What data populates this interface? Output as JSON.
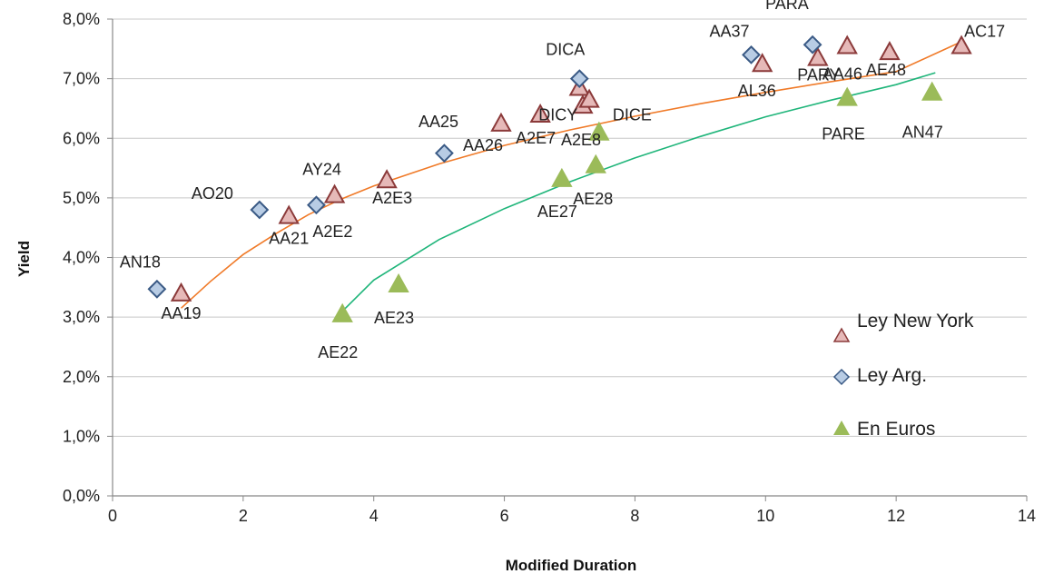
{
  "chart_data": {
    "type": "scatter",
    "title": "",
    "xlabel": "Modified Duration",
    "ylabel": "Yield",
    "xlim": [
      0,
      14
    ],
    "ylim": [
      0,
      8
    ],
    "x_ticks": [
      {
        "value": 0,
        "label": "0"
      },
      {
        "value": 2,
        "label": "2"
      },
      {
        "value": 4,
        "label": "4"
      },
      {
        "value": 6,
        "label": "6"
      },
      {
        "value": 8,
        "label": "8"
      },
      {
        "value": 10,
        "label": "10"
      },
      {
        "value": 12,
        "label": "12"
      },
      {
        "value": 14,
        "label": "14"
      }
    ],
    "y_ticks": [
      {
        "value": 0,
        "label": "0,0%"
      },
      {
        "value": 1,
        "label": "1,0%"
      },
      {
        "value": 2,
        "label": "2,0%"
      },
      {
        "value": 3,
        "label": "3,0%"
      },
      {
        "value": 4,
        "label": "4,0%"
      },
      {
        "value": 5,
        "label": "5,0%"
      },
      {
        "value": 6,
        "label": "6,0%"
      },
      {
        "value": 7,
        "label": "7,0%"
      },
      {
        "value": 8,
        "label": "8,0%"
      }
    ],
    "grid": "horizontal",
    "legend_position": "right",
    "series": [
      {
        "name": "Ley New York",
        "marker": "triangle",
        "fill": "#e6b9b8",
        "stroke": "#8b3a3a",
        "trend_color": "#f07a28",
        "trendline": [
          [
            1.05,
            3.15
          ],
          [
            1.5,
            3.6
          ],
          [
            2,
            4.05
          ],
          [
            2.5,
            4.4
          ],
          [
            3,
            4.72
          ],
          [
            3.5,
            4.98
          ],
          [
            4,
            5.2
          ],
          [
            5,
            5.57
          ],
          [
            6,
            5.88
          ],
          [
            7,
            6.14
          ],
          [
            8,
            6.37
          ],
          [
            9,
            6.58
          ],
          [
            10,
            6.77
          ],
          [
            11,
            6.95
          ],
          [
            12,
            7.12
          ],
          [
            13,
            7.62
          ]
        ],
        "points": [
          {
            "x": 1.05,
            "y": 3.4,
            "label": "AA19"
          },
          {
            "x": 2.7,
            "y": 4.7,
            "label": "AA21"
          },
          {
            "x": 3.4,
            "y": 5.05,
            "label": "AY24"
          },
          {
            "x": 4.2,
            "y": 5.3,
            "label": "A2E3"
          },
          {
            "x": 5.95,
            "y": 6.25,
            "label": "AA26"
          },
          {
            "x": 6.55,
            "y": 6.4,
            "label": "A2E7"
          },
          {
            "x": 7.15,
            "y": 6.85,
            "label": "DICY"
          },
          {
            "x": 7.2,
            "y": 6.55,
            "label": "A2E8"
          },
          {
            "x": 7.3,
            "y": 6.65,
            "label": "AA25"
          },
          {
            "x": 9.95,
            "y": 7.25,
            "label": "AL36"
          },
          {
            "x": 10.8,
            "y": 7.35,
            "label": "AA46"
          },
          {
            "x": 11.25,
            "y": 7.55,
            "label": "PARY"
          },
          {
            "x": 11.9,
            "y": 7.45,
            "label": "AE48"
          },
          {
            "x": 13.0,
            "y": 7.55,
            "label": "AC17"
          }
        ]
      },
      {
        "name": "Ley Arg.",
        "marker": "diamond",
        "fill": "#b8cce4",
        "stroke": "#3a5a85",
        "points": [
          {
            "x": 0.68,
            "y": 3.47,
            "label": "AN18"
          },
          {
            "x": 2.25,
            "y": 4.8,
            "label": "AO20"
          },
          {
            "x": 3.12,
            "y": 4.88,
            "label": "A2E2"
          },
          {
            "x": 5.08,
            "y": 5.75,
            "label": ""
          },
          {
            "x": 7.15,
            "y": 7.0,
            "label": "DICA"
          },
          {
            "x": 9.78,
            "y": 7.4,
            "label": "AA37"
          },
          {
            "x": 10.72,
            "y": 7.57,
            "label": "PARA"
          }
        ]
      },
      {
        "name": "En Euros",
        "marker": "triangle",
        "fill": "#9bbb59",
        "stroke": "#9bbb59",
        "trend_color": "#1fb57a",
        "trendline": [
          [
            3.52,
            3.1
          ],
          [
            4,
            3.62
          ],
          [
            5,
            4.3
          ],
          [
            6,
            4.82
          ],
          [
            7,
            5.27
          ],
          [
            8,
            5.67
          ],
          [
            9,
            6.03
          ],
          [
            10,
            6.36
          ],
          [
            11,
            6.64
          ],
          [
            12,
            6.9
          ],
          [
            12.6,
            7.1
          ]
        ],
        "points": [
          {
            "x": 3.52,
            "y": 3.05,
            "label": "AE22"
          },
          {
            "x": 4.38,
            "y": 3.55,
            "label": "AE23"
          },
          {
            "x": 6.88,
            "y": 5.32,
            "label": "AE27"
          },
          {
            "x": 7.4,
            "y": 5.55,
            "label": "AE28"
          },
          {
            "x": 7.45,
            "y": 6.1,
            "label": "DICE"
          },
          {
            "x": 11.25,
            "y": 6.68,
            "label": "PARE"
          },
          {
            "x": 12.55,
            "y": 6.77,
            "label": "AN47"
          }
        ]
      }
    ]
  },
  "free_labels": [
    "A2E8",
    "AA25"
  ]
}
